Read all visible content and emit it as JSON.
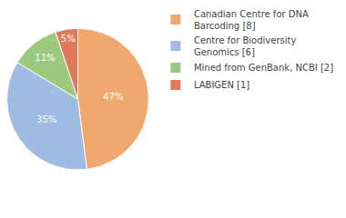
{
  "chart_data": {
    "type": "pie",
    "categories": [
      "Canadian Centre for DNA Barcoding [8]",
      "Centre for Biodiversity Genomics [6]",
      "Mined from GenBank, NCBI [2]",
      "LABIGEN [1]"
    ],
    "values": [
      47,
      35,
      11,
      5
    ],
    "value_labels": [
      "47%",
      "35%",
      "11%",
      "5%"
    ],
    "colors": [
      "#f0a86e",
      "#a0bce2",
      "#9dc97f",
      "#e0785c"
    ],
    "data_labels": true,
    "legend": "top right"
  }
}
